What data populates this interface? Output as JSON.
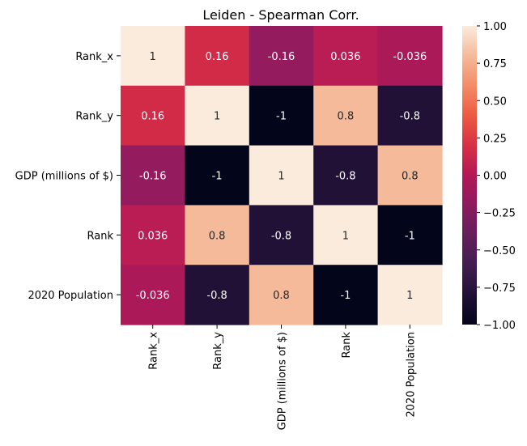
{
  "chart_data": {
    "type": "heatmap",
    "title": "Leiden - Spearman Corr.",
    "row_labels": [
      "Rank_x",
      "Rank_y",
      "GDP (millions of $)",
      "Rank",
      "2020 Population"
    ],
    "col_labels": [
      "Rank_x",
      "Rank_y",
      "GDP (millions of $)",
      "Rank",
      "2020 Population"
    ],
    "values": [
      [
        1,
        0.16,
        -0.16,
        0.036,
        -0.036
      ],
      [
        0.16,
        1,
        -1,
        0.8,
        -0.8
      ],
      [
        -0.16,
        -1,
        1,
        -0.8,
        0.8
      ],
      [
        0.036,
        0.8,
        -0.8,
        1,
        -1
      ],
      [
        -0.036,
        -0.8,
        0.8,
        -1,
        1
      ]
    ],
    "annotations": [
      [
        "1",
        "0.16",
        "-0.16",
        "0.036",
        "-0.036"
      ],
      [
        "0.16",
        "1",
        "-1",
        "0.8",
        "-0.8"
      ],
      [
        "-0.16",
        "-1",
        "1",
        "-0.8",
        "0.8"
      ],
      [
        "0.036",
        "0.8",
        "-0.8",
        "1",
        "-1"
      ],
      [
        "-0.036",
        "-0.8",
        "0.8",
        "-1",
        "1"
      ]
    ],
    "colorbar": {
      "vmin": -1,
      "vmax": 1,
      "ticks": [
        1.0,
        0.75,
        0.5,
        0.25,
        0.0,
        -0.25,
        -0.5,
        -0.75,
        -1.0
      ],
      "tick_labels": [
        "1.00",
        "0.75",
        "0.50",
        "0.25",
        "0.00",
        "−0.25",
        "−0.50",
        "−0.75",
        "−1.00"
      ]
    },
    "colormap": "rocket",
    "grid": false
  }
}
